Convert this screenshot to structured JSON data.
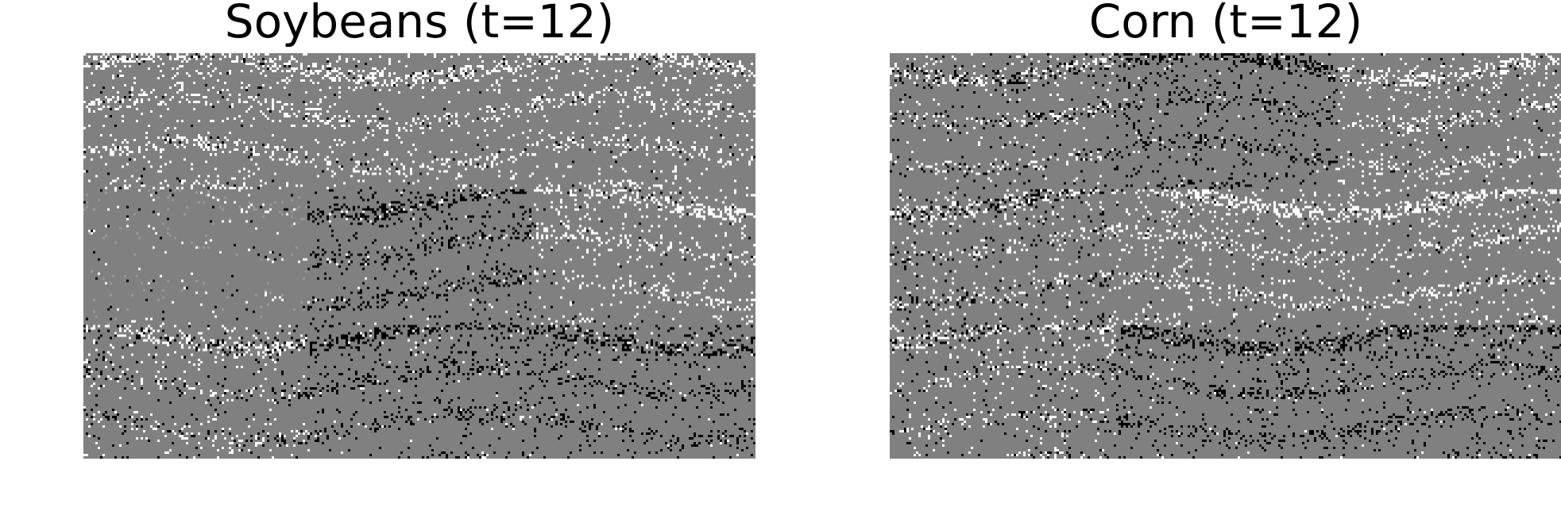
{
  "panels": [
    {
      "title": "Soybeans (t=12)",
      "colors": {
        "background": "#808080",
        "positive": "#ffffff",
        "negative": "#000000"
      },
      "tile_grid": {
        "rows": 3,
        "cols": 3
      },
      "tile_pattern": [
        [
          "white",
          "white",
          "white"
        ],
        [
          "mixed-faint",
          "black",
          "white"
        ],
        [
          "mixed",
          "black",
          "black"
        ]
      ]
    },
    {
      "title": "Corn (t=12)",
      "colors": {
        "background": "#808080",
        "positive": "#ffffff",
        "negative": "#000000"
      },
      "tile_grid": {
        "rows": 3,
        "cols": 3
      },
      "tile_pattern": [
        [
          "mixed",
          "black",
          "white"
        ],
        [
          "mixed",
          "white",
          "white"
        ],
        [
          "mixed",
          "black",
          "black"
        ]
      ]
    }
  ]
}
